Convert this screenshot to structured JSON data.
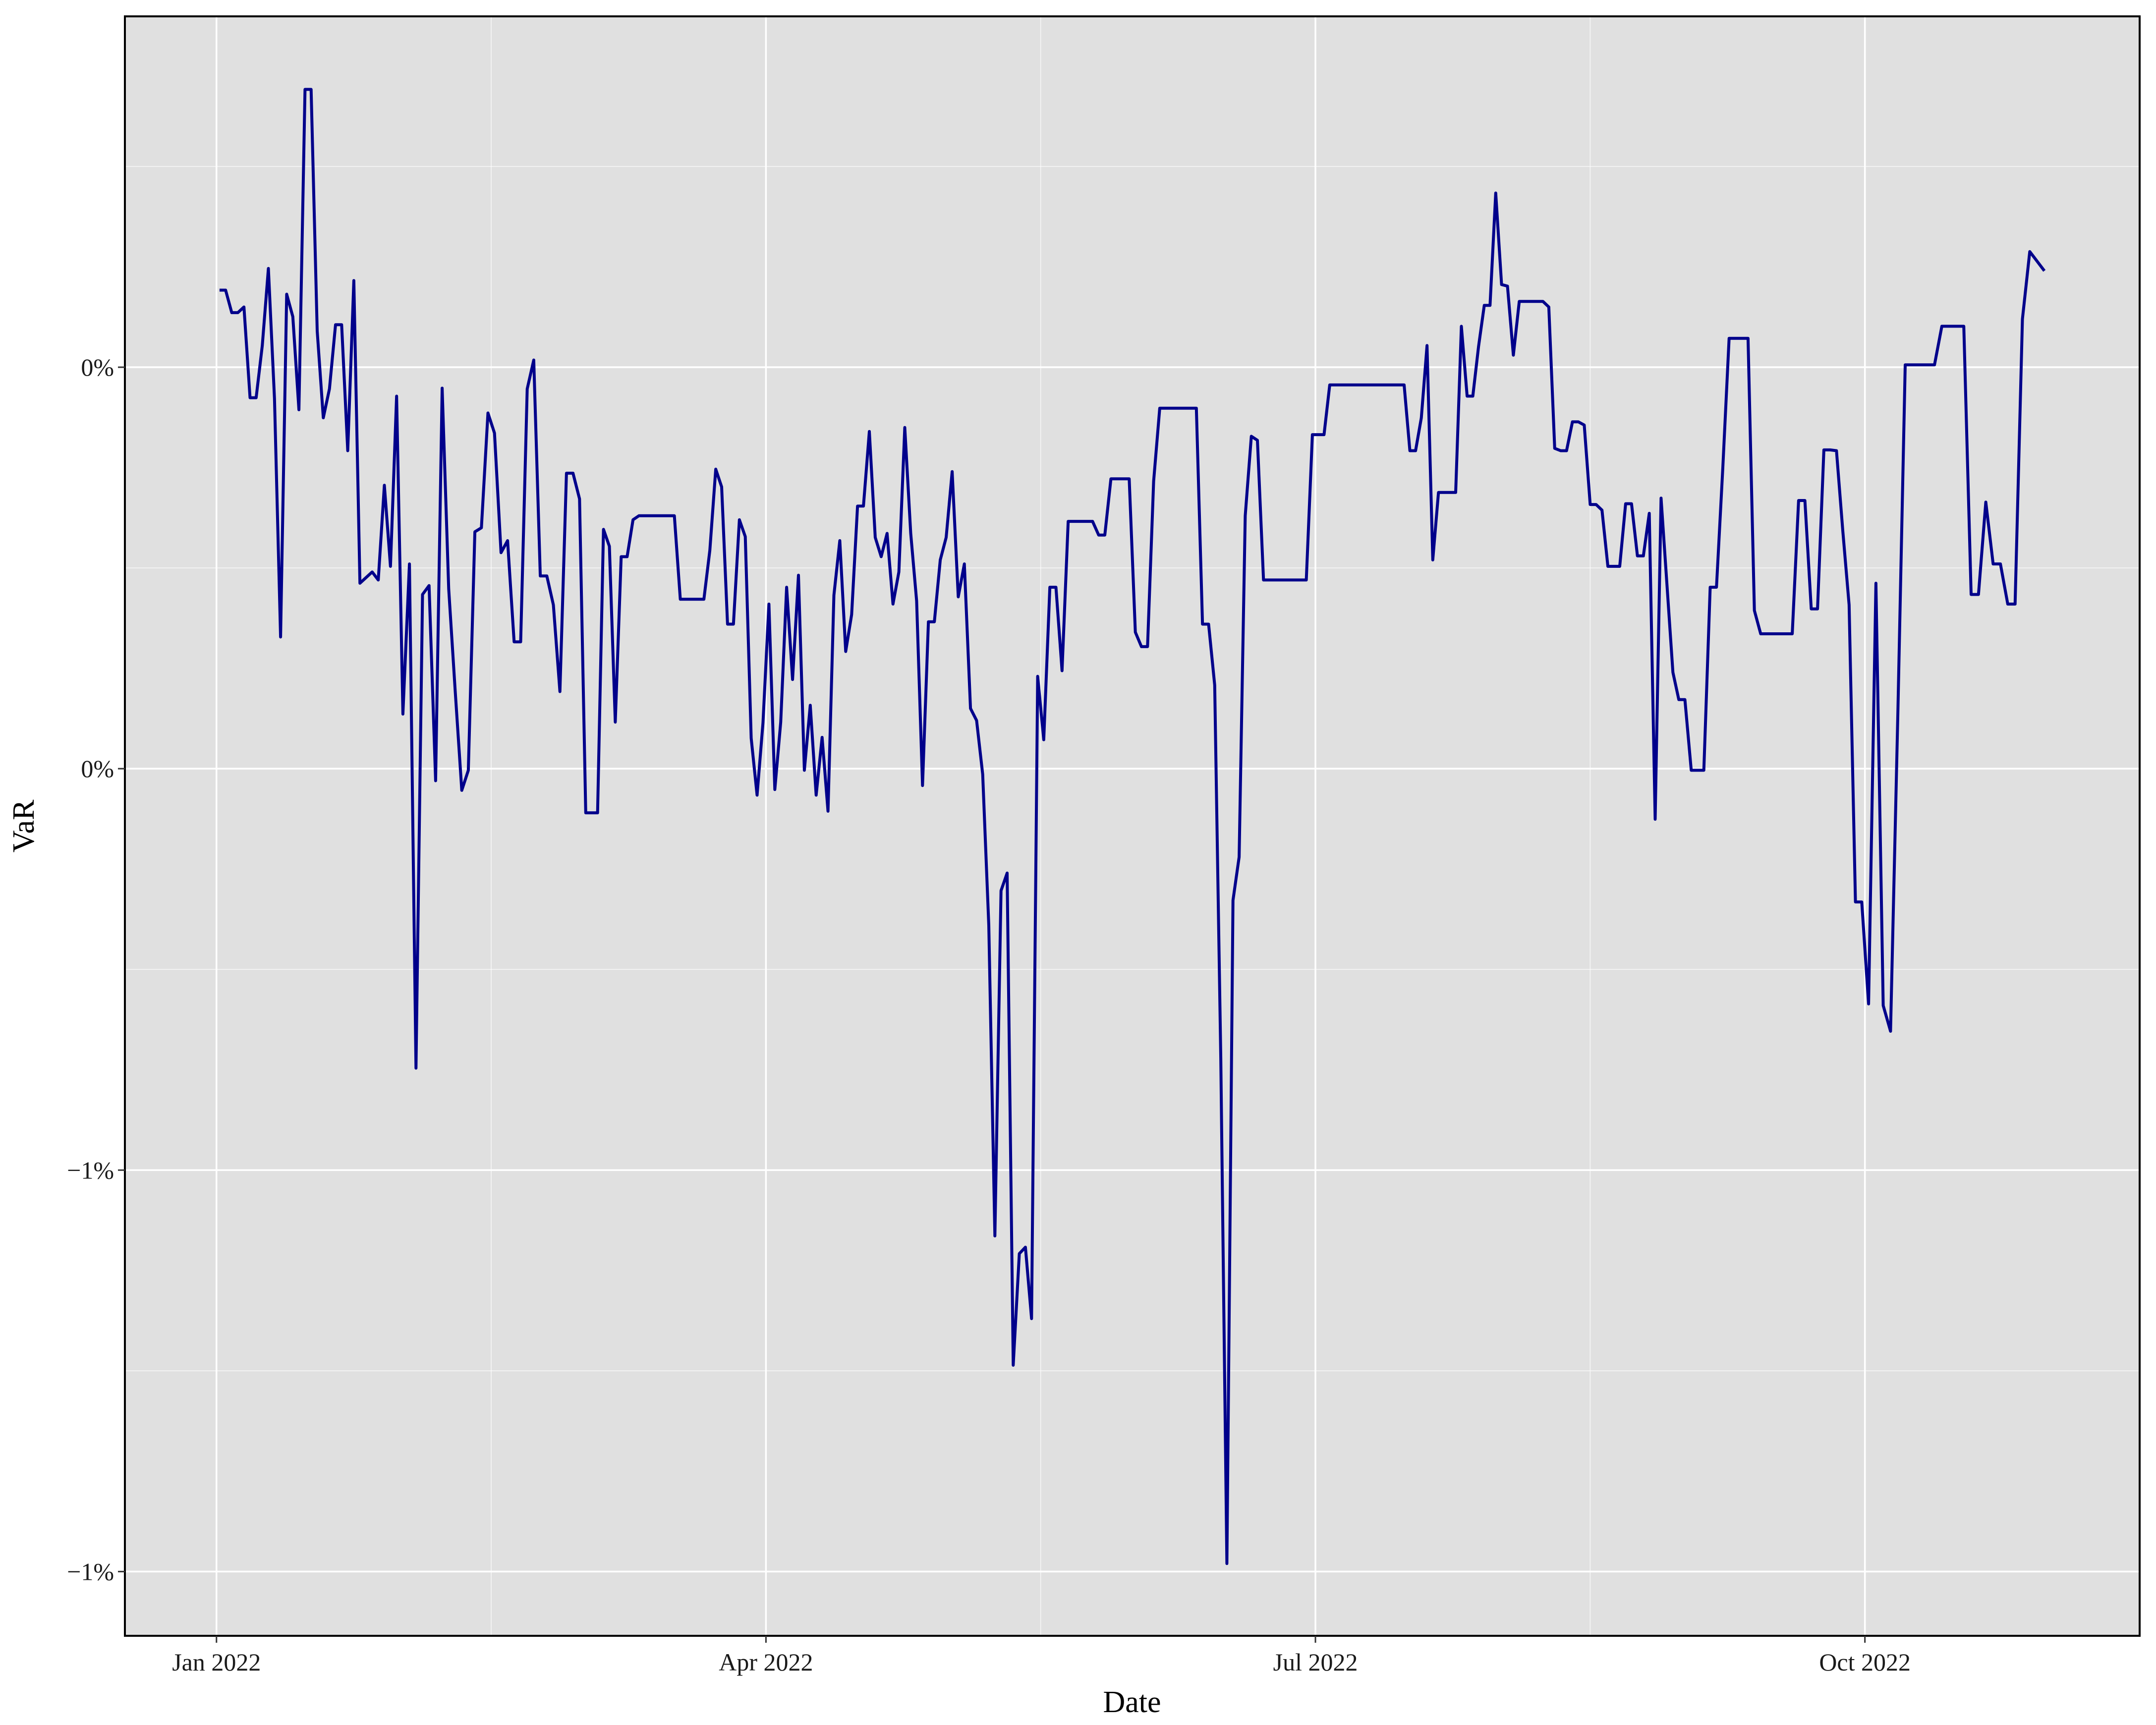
{
  "chart_data": {
    "type": "line",
    "x_label": "Date",
    "y_label": "VaR",
    "color": "#00008b",
    "grid": true,
    "xlim": [
      "2021-12",
      "2022-11"
    ],
    "xticks": [
      {
        "value": "2022-01",
        "label": "Jan 2022"
      },
      {
        "value": "2022-04",
        "label": "Apr 2022"
      },
      {
        "value": "2022-07",
        "label": "Jul 2022"
      },
      {
        "value": "2022-10",
        "label": "Oct 2022"
      }
    ],
    "ylim": [
      -1.33,
      0.687
    ],
    "yticks": [
      {
        "value": -1.25,
        "label": "−1%"
      },
      {
        "value": -0.75,
        "label": "−1%"
      },
      {
        "value": -0.25,
        "label": "0%"
      },
      {
        "value": 0.25,
        "label": "0%"
      }
    ],
    "x": [
      "2022-01",
      "2022-01",
      "2022-01",
      "2022-01",
      "2022-01",
      "2022-01",
      "2022-01",
      "2022-01",
      "2022-01",
      "2022-01",
      "2022-01",
      "2022-01",
      "2022-01",
      "2022-01",
      "2022-01",
      "2022-01",
      "2022-01",
      "2022-01",
      "2022-01",
      "2022-01",
      "2022-01",
      "2022-01",
      "2022-01",
      "2022-01",
      "2022-01",
      "2022-01",
      "2022-01",
      "2022-01",
      "2022-01",
      "2022-01",
      "2022-02",
      "2022-02",
      "2022-02",
      "2022-02",
      "2022-02",
      "2022-02",
      "2022-02",
      "2022-02",
      "2022-02",
      "2022-02",
      "2022-02",
      "2022-02",
      "2022-02",
      "2022-02",
      "2022-02",
      "2022-02",
      "2022-02",
      "2022-02",
      "2022-02",
      "2022-02",
      "2022-02",
      "2022-02",
      "2022-02",
      "2022-02",
      "2022-02",
      "2022-02",
      "2022-02",
      "2022-02",
      "2022-03",
      "2022-03",
      "2022-03",
      "2022-03",
      "2022-03",
      "2022-03",
      "2022-03",
      "2022-03",
      "2022-03",
      "2022-03",
      "2022-03",
      "2022-03",
      "2022-03",
      "2022-03",
      "2022-03",
      "2022-03",
      "2022-03",
      "2022-03",
      "2022-03",
      "2022-03",
      "2022-03",
      "2022-03",
      "2022-03",
      "2022-03",
      "2022-03",
      "2022-03",
      "2022-03",
      "2022-03",
      "2022-03",
      "2022-03",
      "2022-03",
      "2022-04",
      "2022-04",
      "2022-04",
      "2022-04",
      "2022-04",
      "2022-04",
      "2022-04",
      "2022-04",
      "2022-04",
      "2022-04",
      "2022-04",
      "2022-04",
      "2022-04",
      "2022-04",
      "2022-04",
      "2022-04",
      "2022-04",
      "2022-04",
      "2022-04",
      "2022-04",
      "2022-04",
      "2022-04",
      "2022-04",
      "2022-04",
      "2022-04",
      "2022-04",
      "2022-04",
      "2022-04",
      "2022-04",
      "2022-04",
      "2022-04",
      "2022-05",
      "2022-05",
      "2022-05",
      "2022-05",
      "2022-05",
      "2022-05",
      "2022-05",
      "2022-05",
      "2022-05",
      "2022-05",
      "2022-05",
      "2022-05",
      "2022-05",
      "2022-05",
      "2022-05",
      "2022-05",
      "2022-05",
      "2022-05",
      "2022-05",
      "2022-05",
      "2022-05",
      "2022-05",
      "2022-05",
      "2022-05",
      "2022-05",
      "2022-05",
      "2022-05",
      "2022-05",
      "2022-05",
      "2022-05",
      "2022-06",
      "2022-06",
      "2022-06",
      "2022-06",
      "2022-06",
      "2022-06",
      "2022-06",
      "2022-06",
      "2022-06",
      "2022-06",
      "2022-06",
      "2022-06",
      "2022-06",
      "2022-06",
      "2022-06",
      "2022-06",
      "2022-06",
      "2022-06",
      "2022-06",
      "2022-06",
      "2022-06",
      "2022-06",
      "2022-06",
      "2022-06",
      "2022-06",
      "2022-06",
      "2022-06",
      "2022-06",
      "2022-06",
      "2022-06",
      "2022-07",
      "2022-07",
      "2022-07",
      "2022-07",
      "2022-07",
      "2022-07",
      "2022-07",
      "2022-07",
      "2022-07",
      "2022-07",
      "2022-07",
      "2022-07",
      "2022-07",
      "2022-07",
      "2022-07",
      "2022-07",
      "2022-07",
      "2022-07",
      "2022-07",
      "2022-07",
      "2022-07",
      "2022-07",
      "2022-07",
      "2022-07",
      "2022-07",
      "2022-07",
      "2022-07",
      "2022-07",
      "2022-07",
      "2022-07",
      "2022-07",
      "2022-07",
      "2022-08",
      "2022-08",
      "2022-08",
      "2022-08",
      "2022-08",
      "2022-08",
      "2022-08",
      "2022-08",
      "2022-08",
      "2022-08",
      "2022-08",
      "2022-08",
      "2022-08",
      "2022-08",
      "2022-08",
      "2022-08",
      "2022-08",
      "2022-08",
      "2022-08",
      "2022-08",
      "2022-08",
      "2022-08",
      "2022-08",
      "2022-08",
      "2022-08",
      "2022-08",
      "2022-08",
      "2022-08",
      "2022-08",
      "2022-08",
      "2022-08",
      "2022-09",
      "2022-09",
      "2022-09",
      "2022-09",
      "2022-09",
      "2022-09",
      "2022-09",
      "2022-09",
      "2022-09",
      "2022-09",
      "2022-09",
      "2022-09",
      "2022-09",
      "2022-09",
      "2022-09",
      "2022-09",
      "2022-09",
      "2022-09",
      "2022-09",
      "2022-09",
      "2022-09",
      "2022-09",
      "2022-09",
      "2022-09",
      "2022-09",
      "2022-09",
      "2022-09",
      "2022-09",
      "2022-09",
      "2022-10",
      "2022-10",
      "2022-10",
      "2022-10",
      "2022-10",
      "2022-10",
      "2022-10",
      "2022-10",
      "2022-10",
      "2022-10",
      "2022-10",
      "2022-10",
      "2022-10",
      "2022-10",
      "2022-10",
      "2022-10",
      "2022-10",
      "2022-10",
      "2022-10",
      "2022-10",
      "2022-10",
      "2022-10",
      "2022-10",
      "2022-10",
      "2022-10"
    ],
    "values": [
      0.346,
      0.346,
      0.318,
      0.318,
      0.325,
      0.212,
      0.212,
      0.277,
      0.373,
      0.211,
      -0.086,
      0.341,
      0.313,
      0.197,
      0.596,
      0.596,
      0.295,
      0.187,
      0.223,
      0.303,
      0.303,
      0.146,
      0.358,
      -0.019,
      -0.012,
      -0.005,
      -0.015,
      0.103,
      0.002,
      0.214,
      -0.182,
      0.005,
      -0.623,
      -0.033,
      -0.022,
      -0.265,
      0.224,
      -0.026,
      -0.154,
      -0.277,
      -0.252,
      0.045,
      0.05,
      0.193,
      0.168,
      0.019,
      0.034,
      -0.092,
      -0.092,
      0.223,
      0.259,
      -0.01,
      -0.01,
      -0.046,
      -0.154,
      0.118,
      0.118,
      0.086,
      -0.305,
      -0.305,
      -0.305,
      0.048,
      0.027,
      -0.192,
      0.014,
      0.014,
      0.06,
      0.065,
      0.065,
      0.065,
      0.065,
      0.065,
      0.065,
      0.065,
      -0.039,
      -0.039,
      -0.039,
      -0.039,
      -0.039,
      0.022,
      0.123,
      0.101,
      -0.07,
      -0.07,
      0.06,
      0.039,
      -0.212,
      -0.283,
      -0.193,
      -0.045,
      -0.276,
      -0.192,
      -0.024,
      -0.139,
      -0.009,
      -0.252,
      -0.171,
      -0.283,
      -0.211,
      -0.303,
      -0.034,
      0.034,
      -0.104,
      -0.058,
      0.077,
      0.077,
      0.17,
      0.038,
      0.014,
      0.043,
      -0.045,
      -0.005,
      0.175,
      0.043,
      -0.041,
      -0.271,
      -0.067,
      -0.067,
      0.01,
      0.038,
      0.12,
      -0.036,
      0.005,
      -0.175,
      -0.19,
      -0.257,
      -0.445,
      -0.832,
      -0.402,
      -0.38,
      -0.993,
      -0.854,
      -0.846,
      -0.935,
      -0.135,
      -0.214,
      -0.024,
      -0.024,
      -0.128,
      0.058,
      0.058,
      0.058,
      0.058,
      0.058,
      0.041,
      0.041,
      0.111,
      0.111,
      0.111,
      0.111,
      -0.08,
      -0.098,
      -0.098,
      0.108,
      0.199,
      0.199,
      0.199,
      0.199,
      0.199,
      0.199,
      0.199,
      -0.07,
      -0.07,
      -0.146,
      -0.611,
      -1.24,
      -0.414,
      -0.36,
      0.065,
      0.164,
      0.159,
      -0.015,
      -0.015,
      -0.015,
      -0.015,
      -0.015,
      -0.015,
      -0.015,
      -0.015,
      0.166,
      0.166,
      0.166,
      0.228,
      0.228,
      0.228,
      0.228,
      0.228,
      0.228,
      0.228,
      0.228,
      0.228,
      0.228,
      0.228,
      0.228,
      0.228,
      0.228,
      0.146,
      0.146,
      0.187,
      0.277,
      0.01,
      0.094,
      0.094,
      0.094,
      0.094,
      0.301,
      0.214,
      0.214,
      0.276,
      0.327,
      0.327,
      0.467,
      0.353,
      0.351,
      0.265,
      0.332,
      0.332,
      0.332,
      0.332,
      0.332,
      0.325,
      0.149,
      0.146,
      0.146,
      0.182,
      0.182,
      0.178,
      0.079,
      0.079,
      0.072,
      0.002,
      0.002,
      0.002,
      0.08,
      0.08,
      0.015,
      0.015,
      0.068,
      -0.313,
      0.087,
      -0.021,
      -0.13,
      -0.164,
      -0.164,
      -0.252,
      -0.252,
      -0.252,
      -0.024,
      -0.024,
      0.125,
      0.286,
      0.286,
      0.286,
      0.286,
      -0.053,
      -0.082,
      -0.082,
      -0.082,
      -0.082,
      -0.082,
      -0.082,
      0.084,
      0.084,
      -0.051,
      -0.051,
      0.147,
      0.147,
      0.146,
      0.046,
      -0.046,
      -0.416,
      -0.416,
      -0.543,
      -0.019,
      -0.545,
      -0.577,
      -0.18,
      0.253,
      0.253,
      0.253,
      0.253,
      0.253,
      0.301,
      0.301,
      0.301,
      0.301,
      -0.033,
      -0.033,
      0.082,
      0.005,
      0.005,
      -0.045,
      -0.045,
      0.31,
      0.394,
      0.382,
      0.37
    ]
  }
}
